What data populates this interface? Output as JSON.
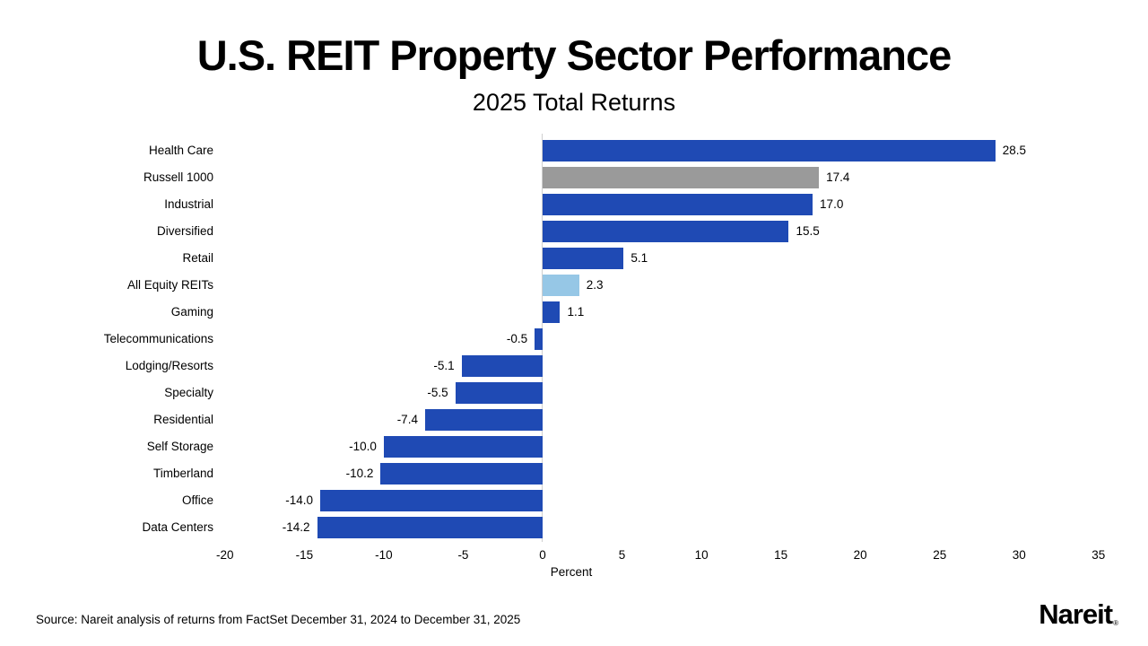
{
  "title": "U.S. REIT Property Sector Performance",
  "subtitle": "2025 Total Returns",
  "source": "Source: Nareit analysis of returns from FactSet December 31, 2024 to December 31, 2025",
  "logo": {
    "text": "Nareit",
    "registered": "®"
  },
  "colors": {
    "bar_default": "#1f4ab4",
    "bar_benchmark": "#9a9a9a",
    "bar_highlight": "#96c7e6",
    "zero_line": "#cfcfcf",
    "text": "#000000"
  },
  "chart_data": {
    "type": "bar",
    "orientation": "horizontal",
    "title": "U.S. REIT Property Sector Performance",
    "subtitle": "2025 Total Returns",
    "xlabel": "Percent",
    "ylabel": "",
    "xlim": [
      -20,
      35
    ],
    "xticks": [
      -20,
      -15,
      -10,
      -5,
      0,
      5,
      10,
      15,
      20,
      25,
      30,
      35
    ],
    "grid": false,
    "legend": "none",
    "categories": [
      "Health Care",
      "Russell 1000",
      "Industrial",
      "Diversified",
      "Retail",
      "All Equity REITs",
      "Gaming",
      "Telecommunications",
      "Lodging/Resorts",
      "Specialty",
      "Residential",
      "Self Storage",
      "Timberland",
      "Office",
      "Data Centers"
    ],
    "values": [
      28.5,
      17.4,
      17.0,
      15.5,
      5.1,
      2.3,
      1.1,
      -0.5,
      -5.1,
      -5.5,
      -7.4,
      -10.0,
      -10.2,
      -14.0,
      -14.2
    ],
    "value_labels": [
      "28.5",
      "17.4",
      "17.0",
      "15.5",
      "5.1",
      "2.3",
      "1.1",
      "-0.5",
      "-5.1",
      "-5.5",
      "-7.4",
      "-10.0",
      "-10.2",
      "-14.0",
      "-14.2"
    ],
    "bar_color_keys": [
      "bar_default",
      "bar_benchmark",
      "bar_default",
      "bar_default",
      "bar_default",
      "bar_highlight",
      "bar_default",
      "bar_default",
      "bar_default",
      "bar_default",
      "bar_default",
      "bar_default",
      "bar_default",
      "bar_default",
      "bar_default"
    ]
  }
}
